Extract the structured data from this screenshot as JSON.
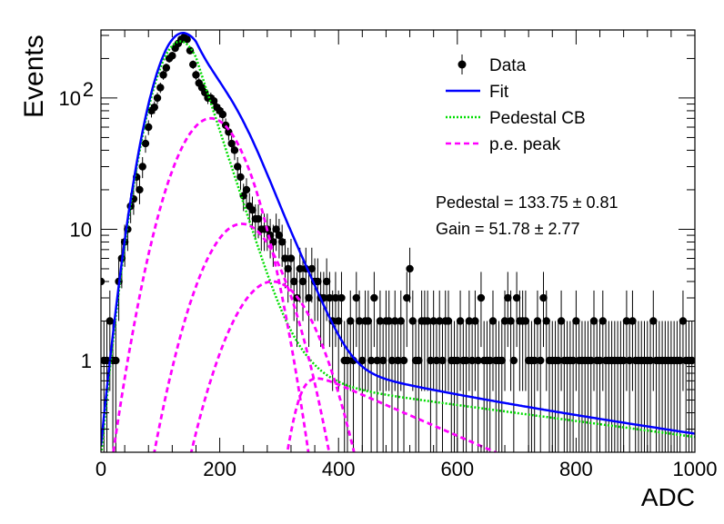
{
  "chart_data": {
    "type": "histogram_fit",
    "xlabel": "ADC",
    "ylabel": "Events",
    "xlim": [
      0,
      1000
    ],
    "ylim": [
      0.2,
      330
    ],
    "yscale": "log",
    "grid": false,
    "x_ticks": [
      "0",
      "200",
      "400",
      "600",
      "800",
      "1000"
    ],
    "y_ticks": [
      {
        "label": "1",
        "value": 1
      },
      {
        "label": "10",
        "value": 10
      },
      {
        "label": "10",
        "sup": "2",
        "value": 100
      }
    ],
    "legend": {
      "placement": "top-right",
      "entries": [
        {
          "label": "Data",
          "style": "marker",
          "color": "#000000"
        },
        {
          "label": "Fit",
          "style": "solid",
          "color": "#0000ff"
        },
        {
          "label": "Pedestal CB",
          "style": "dotted",
          "color": "#00dd00"
        },
        {
          "label": "p.e. peak",
          "style": "dashed",
          "color": "#ff00ff"
        }
      ]
    },
    "annotations": [
      {
        "name": "Pedestal",
        "value": "133.75",
        "error": "0.81"
      },
      {
        "name": "Gain",
        "value": "51.78",
        "error": "2.77"
      }
    ],
    "fit": {
      "pedestal": {
        "mean": 133.75,
        "sigma": 35,
        "amplitude": 270,
        "tail_start": 160,
        "tail_slope": 0.032,
        "tail_end_level": 0.65,
        "tail_decay": 0.0014
      },
      "gain": 51.78,
      "pe_peaks": [
        {
          "mean": 185,
          "sigma": 48,
          "amplitude": 70
        },
        {
          "mean": 237,
          "sigma": 52,
          "amplitude": 11
        },
        {
          "mean": 289,
          "sigma": 56,
          "amplitude": 4
        }
      ],
      "pe_tail": {
        "start": 330,
        "level": 0.9,
        "decay": 0.0045
      },
      "colors": {
        "fit": "#0000ff",
        "pedestal": "#00dd00",
        "pe": "#ff00ff"
      }
    },
    "data": {
      "x": [
        0,
        5,
        10,
        15,
        20,
        25,
        30,
        35,
        40,
        45,
        50,
        55,
        60,
        65,
        70,
        75,
        80,
        85,
        90,
        95,
        100,
        105,
        110,
        115,
        120,
        125,
        130,
        135,
        140,
        145,
        150,
        155,
        160,
        165,
        170,
        175,
        180,
        185,
        190,
        195,
        200,
        205,
        210,
        215,
        220,
        225,
        230,
        235,
        240,
        245,
        250,
        255,
        260,
        265,
        270,
        275,
        280,
        285,
        290,
        295,
        300,
        305,
        310,
        315,
        320,
        325,
        330,
        335,
        340,
        345,
        350,
        355,
        360,
        365,
        370,
        375,
        380,
        385,
        390,
        395,
        400,
        405,
        410,
        415,
        420,
        425,
        430,
        435,
        440,
        445,
        450,
        455,
        460,
        465,
        470,
        475,
        480,
        485,
        490,
        495,
        500,
        505,
        510,
        515,
        520,
        525,
        530,
        535,
        540,
        545,
        550,
        555,
        560,
        565,
        570,
        575,
        580,
        585,
        590,
        595,
        600,
        605,
        610,
        615,
        620,
        625,
        630,
        635,
        640,
        645,
        650,
        655,
        660,
        665,
        670,
        675,
        680,
        685,
        690,
        695,
        700,
        705,
        710,
        715,
        720,
        725,
        730,
        735,
        740,
        745,
        750,
        755,
        760,
        765,
        770,
        775,
        780,
        785,
        790,
        795,
        800,
        805,
        810,
        815,
        820,
        825,
        830,
        835,
        840,
        845,
        850,
        855,
        860,
        865,
        870,
        875,
        880,
        885,
        890,
        895,
        900,
        905,
        910,
        915,
        920,
        925,
        930,
        935,
        940,
        945,
        950,
        955,
        960,
        965,
        970,
        975,
        980,
        985,
        990,
        995
      ],
      "y": [
        4,
        1,
        1,
        2,
        1,
        1,
        4,
        6,
        8,
        10,
        15,
        17,
        25,
        20,
        30,
        45,
        60,
        80,
        85,
        100,
        120,
        150,
        170,
        200,
        210,
        240,
        260,
        280,
        290,
        280,
        230,
        180,
        150,
        130,
        120,
        110,
        100,
        100,
        95,
        85,
        80,
        75,
        62,
        55,
        45,
        40,
        30,
        25,
        18,
        20,
        15,
        14,
        12,
        12,
        10,
        10,
        10,
        9,
        8,
        10,
        9,
        8,
        6,
        5,
        6,
        4,
        3,
        5,
        4,
        5,
        3,
        5,
        4,
        4,
        3,
        3,
        4,
        3,
        2,
        3,
        2,
        3,
        1,
        1,
        2,
        1,
        3,
        2,
        1,
        2,
        2,
        1,
        3,
        1,
        2,
        1,
        2,
        2,
        1,
        2,
        1,
        2,
        1,
        3,
        5,
        2,
        1,
        1,
        2,
        2,
        2,
        1,
        2,
        1,
        2,
        1,
        2,
        2,
        1,
        1,
        1,
        2,
        1,
        1,
        2,
        1,
        2,
        1,
        3,
        1,
        1,
        1,
        2,
        1,
        1,
        1,
        2,
        3,
        2,
        1,
        3,
        2,
        2,
        2,
        1,
        1,
        1,
        2,
        1,
        3,
        2,
        1,
        1,
        1,
        1,
        2,
        1,
        1,
        1,
        1,
        2,
        1,
        1,
        1,
        1,
        1,
        2,
        1,
        1,
        2,
        1,
        1,
        1,
        1,
        1,
        1,
        1,
        2,
        1,
        2,
        1,
        1,
        1,
        1,
        1,
        1,
        2,
        1,
        1,
        1,
        1,
        1,
        1,
        1,
        1,
        1,
        2,
        1,
        1,
        1
      ]
    }
  }
}
